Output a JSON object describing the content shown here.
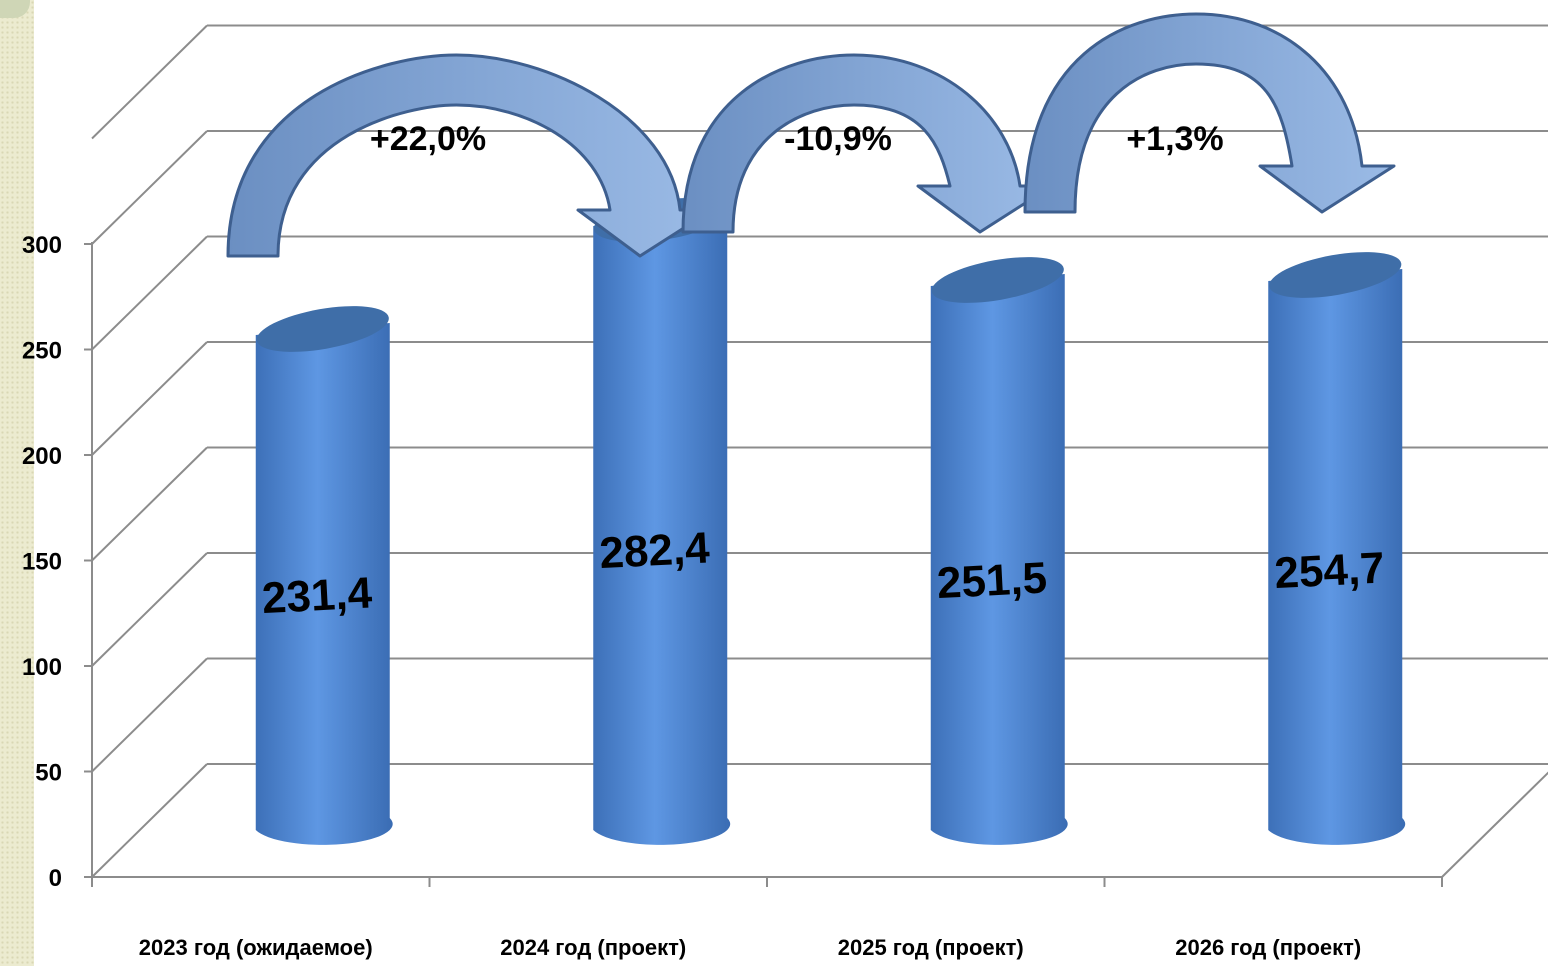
{
  "chart_data": {
    "type": "bar",
    "categories": [
      "2023 год (ожидаемое)",
      "2024 год (проект)",
      "2025 год (проект)",
      "2026 год (проект)"
    ],
    "values": [
      231.4,
      282.4,
      251.5,
      254.7
    ],
    "value_labels": [
      "231,4",
      "282,4",
      "251,5",
      "254,7"
    ],
    "y_ticks": [
      "0",
      "50",
      "100",
      "150",
      "200",
      "250",
      "300"
    ],
    "ylim": [
      0,
      300
    ],
    "grid": true,
    "changes": [
      "+22,0%",
      "-10,9%",
      "+1,3%"
    ],
    "bar_color": "#4f86d3",
    "arrow_color": "#7d9fcd"
  }
}
